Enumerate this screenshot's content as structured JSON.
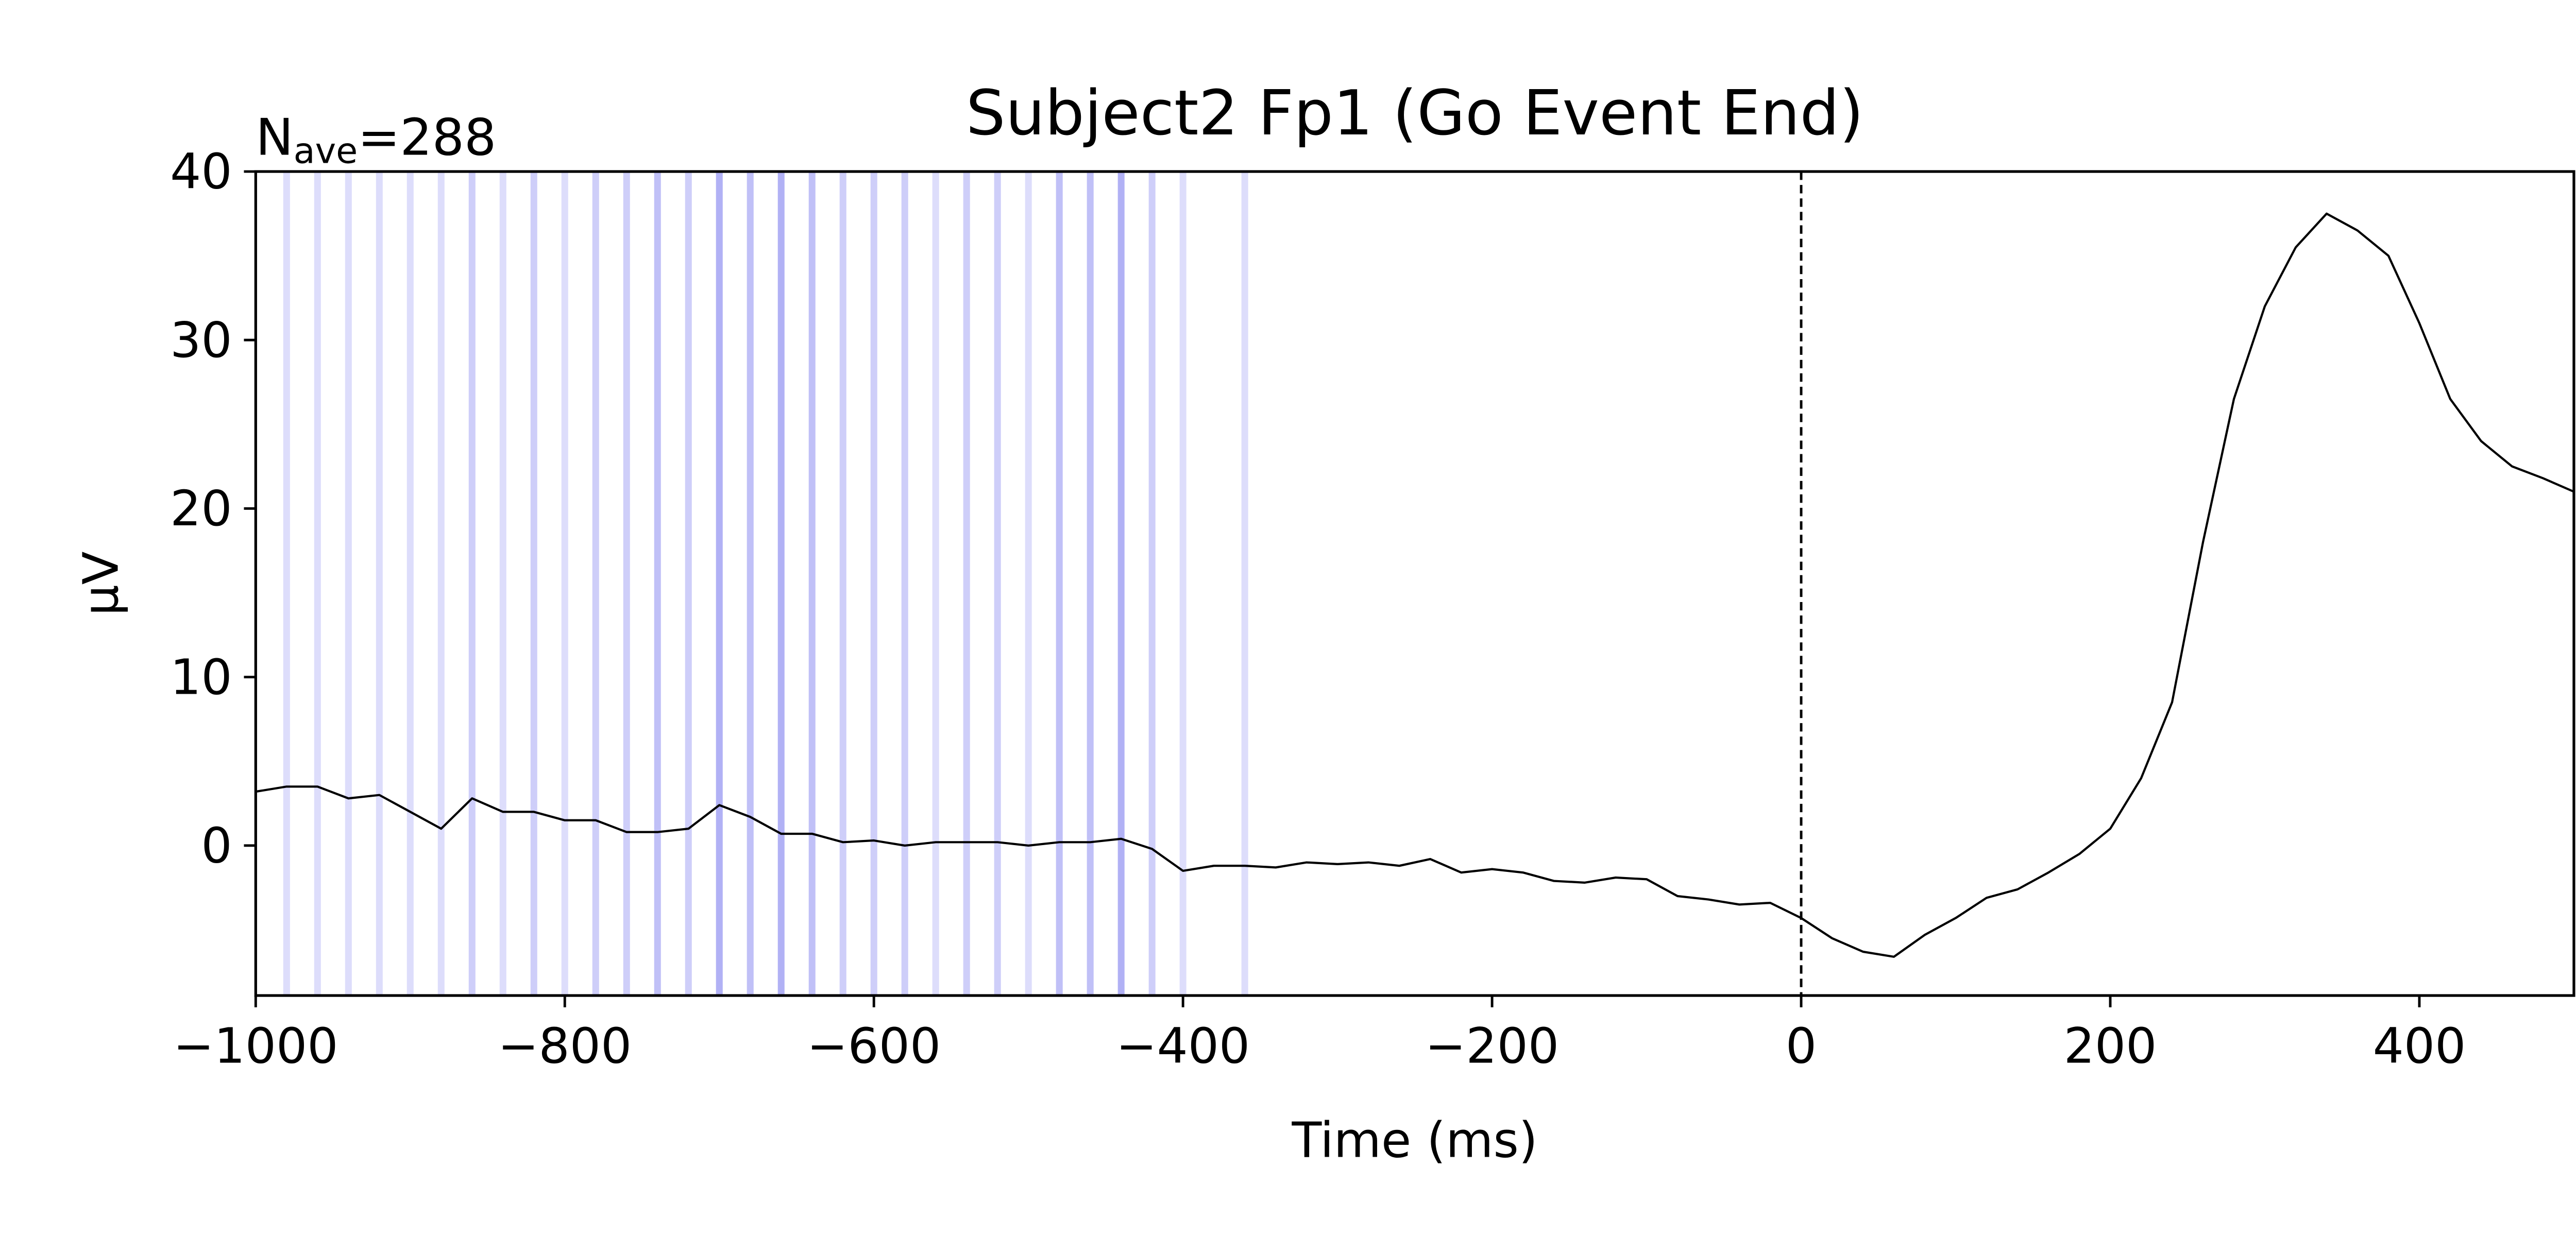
{
  "chart_data": {
    "type": "line",
    "title": "Subject2 Fp1 (Go Event End)",
    "annotation": {
      "base": "N",
      "sub": "ave",
      "rest": "=288"
    },
    "xlabel": "Time (ms)",
    "ylabel": "µV",
    "xlim": [
      -1000,
      500
    ],
    "ylim": [
      -8.9,
      40
    ],
    "xticks": [
      {
        "value": -1000,
        "label": "−1000"
      },
      {
        "value": -800,
        "label": "−800"
      },
      {
        "value": -600,
        "label": "−600"
      },
      {
        "value": -400,
        "label": "−400"
      },
      {
        "value": -200,
        "label": "−200"
      },
      0,
      200,
      400
    ],
    "yticks": [
      0,
      10,
      20,
      30,
      40
    ],
    "vline": 0,
    "event_color": "#3c3ce6",
    "events": {
      "x": [
        -980,
        -960,
        -940,
        -920,
        -900,
        -880,
        -860,
        -840,
        -820,
        -800,
        -780,
        -760,
        -740,
        -720,
        -700,
        -680,
        -660,
        -640,
        -620,
        -600,
        -580,
        -560,
        -540,
        -520,
        -500,
        -480,
        -460,
        -440,
        -420,
        -400,
        -360
      ],
      "counts": [
        1,
        1,
        1,
        1,
        1,
        1,
        2,
        1,
        2,
        1,
        2,
        2,
        3,
        2,
        4,
        3,
        4,
        3,
        2,
        2,
        2,
        1,
        2,
        2,
        1,
        3,
        3,
        4,
        2,
        1,
        1
      ]
    },
    "x": [
      -1000,
      -980,
      -960,
      -940,
      -920,
      -900,
      -880,
      -860,
      -840,
      -820,
      -800,
      -780,
      -760,
      -740,
      -720,
      -700,
      -680,
      -660,
      -640,
      -620,
      -600,
      -580,
      -560,
      -540,
      -520,
      -500,
      -480,
      -460,
      -440,
      -420,
      -400,
      -380,
      -360,
      -340,
      -320,
      -300,
      -280,
      -260,
      -240,
      -220,
      -200,
      -180,
      -160,
      -140,
      -120,
      -100,
      -80,
      -60,
      -40,
      -20,
      0,
      20,
      40,
      60,
      80,
      100,
      120,
      140,
      160,
      180,
      200,
      220,
      240,
      260,
      280,
      300,
      320,
      340,
      360,
      380,
      400,
      420,
      440,
      460,
      480,
      500
    ],
    "series": [
      {
        "color": "#000000",
        "values": [
          3.2,
          3.5,
          3.5,
          2.8,
          3.0,
          2.0,
          1.0,
          2.8,
          2.0,
          2.0,
          1.5,
          1.5,
          0.8,
          0.8,
          1.0,
          2.4,
          1.7,
          0.7,
          0.7,
          0.2,
          0.3,
          0.0,
          0.2,
          0.2,
          0.2,
          0.0,
          0.2,
          0.2,
          0.4,
          -0.2,
          -1.5,
          -1.2,
          -1.2,
          -1.3,
          -1.0,
          -1.1,
          -1.0,
          -1.2,
          -0.8,
          -1.6,
          -1.4,
          -1.6,
          -2.1,
          -2.2,
          -1.9,
          -2.0,
          -3.0,
          -3.2,
          -3.5,
          -3.4,
          -4.3,
          -5.5,
          -6.3,
          -6.6,
          -5.3,
          -4.3,
          -3.1,
          -2.6,
          -1.6,
          -0.5,
          1.0,
          4.0,
          8.5,
          18,
          26.5,
          32,
          35.5,
          37.5,
          36.5,
          35,
          31,
          26.5,
          24,
          22.5,
          21.8,
          21.0
        ]
      }
    ]
  }
}
